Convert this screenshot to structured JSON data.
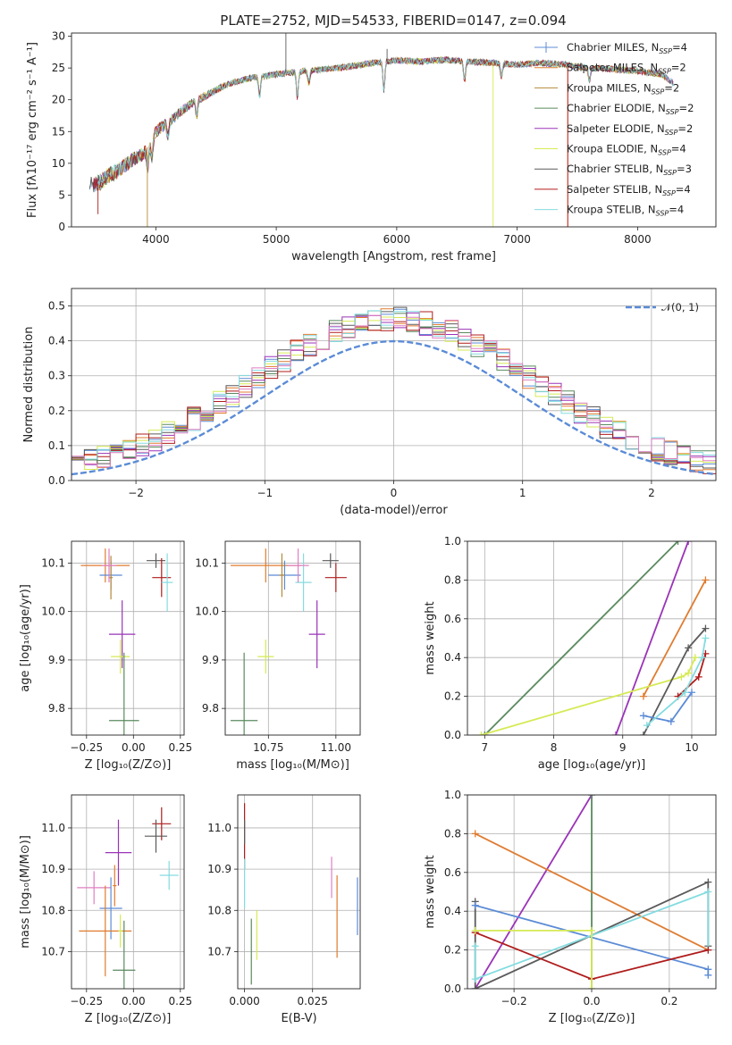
{
  "figure_title": "PLATE=2752, MJD=54533, FIBERID=0147, z=0.094",
  "colors": {
    "chabrier_miles": "#5b8bd6",
    "salpeter_miles": "#e07b2f",
    "kroupa_miles": "#b58a3a",
    "chabrier_elodie": "#5a8a5e",
    "salpeter_elodie": "#9a33b8",
    "kroupa_elodie": "#d6ea55",
    "chabrier_stelib": "#5a5a5a",
    "salpeter_stelib": "#b01c1c",
    "kroupa_stelib": "#84dce0",
    "pink": "#e07fc2",
    "normal": "#5b8bd6"
  },
  "chart_data": [
    {
      "id": "spectrum",
      "type": "line",
      "xlabel": "wavelength [Angstrom, rest frame]",
      "ylabel": "Flux [fλ10⁻¹⁷ erg cm⁻² s⁻¹ A⁻¹]",
      "xlim": [
        3300,
        8650
      ],
      "ylim": [
        0,
        30.5
      ],
      "xticks": [
        4000,
        5000,
        6000,
        7000,
        8000
      ],
      "yticks": [
        0,
        5,
        10,
        15,
        20,
        25,
        30
      ],
      "legend_position": "upper-right",
      "x_knots": [
        3500,
        3600,
        3700,
        3800,
        3900,
        4000,
        4100,
        4200,
        4300,
        4400,
        4500,
        4600,
        4800,
        5000,
        5200,
        5400,
        5600,
        5800,
        6000,
        6200,
        6400,
        6600,
        6800,
        7000,
        7200,
        7400,
        7600,
        7800,
        8000,
        8200,
        8300
      ],
      "y_knots": [
        6.5,
        8.0,
        9.0,
        10.5,
        11.5,
        15.0,
        16.5,
        18.0,
        19.5,
        20.5,
        21.5,
        22.5,
        23.5,
        24.0,
        24.5,
        24.8,
        25.2,
        25.8,
        26.2,
        26.0,
        26.3,
        26.0,
        25.8,
        25.5,
        25.8,
        25.5,
        25.0,
        24.8,
        24.5,
        24.0,
        22.5
      ],
      "series": [
        {
          "label": "Chabrier MILES, N",
          "sub": "SSP",
          "eq": "=4",
          "color_key": "chabrier_miles",
          "marker": true
        },
        {
          "label": "Salpeter MILES, N",
          "sub": "SSP",
          "eq": "=2",
          "color_key": "salpeter_miles"
        },
        {
          "label": "Kroupa MILES, N",
          "sub": "SSP",
          "eq": "=2",
          "color_key": "kroupa_miles"
        },
        {
          "label": "Chabrier ELODIE, N",
          "sub": "SSP",
          "eq": "=2",
          "color_key": "chabrier_elodie"
        },
        {
          "label": "Salpeter ELODIE, N",
          "sub": "SSP",
          "eq": "=2",
          "color_key": "salpeter_elodie"
        },
        {
          "label": "Kroupa ELODIE, N",
          "sub": "SSP",
          "eq": "=4",
          "color_key": "kroupa_elodie"
        },
        {
          "label": "Chabrier STELIB, N",
          "sub": "SSP",
          "eq": "=3",
          "color_key": "chabrier_stelib"
        },
        {
          "label": "Salpeter STELIB, N",
          "sub": "SSP",
          "eq": "=4",
          "color_key": "salpeter_stelib"
        },
        {
          "label": "Kroupa STELIB, N",
          "sub": "SSP",
          "eq": "=4",
          "color_key": "kroupa_stelib"
        }
      ]
    },
    {
      "id": "residuals",
      "type": "histogram",
      "xlabel": "(data-model)/error",
      "ylabel": "Normed distribution",
      "xlim": [
        -2.5,
        2.5
      ],
      "ylim": [
        0,
        0.55
      ],
      "xticks": [
        -2,
        -1,
        0,
        1,
        2
      ],
      "yticks": [
        0.0,
        0.1,
        0.2,
        0.3,
        0.4,
        0.5
      ],
      "grid": true,
      "legend_position": "upper-right",
      "normal_label": "𝒩(0, 1)",
      "bin_width": 0.1,
      "series_colors": [
        "chabrier_miles",
        "salpeter_miles",
        "chabrier_elodie",
        "salpeter_elodie",
        "kroupa_elodie",
        "chabrier_stelib",
        "salpeter_stelib",
        "kroupa_stelib",
        "pink"
      ]
    },
    {
      "id": "age_vs_Z",
      "type": "errorbar",
      "xlabel": "Z [log₁₀(Z/Z⊙)]",
      "ylabel": "age  [log₁₀(age/yr)]",
      "xlim": [
        -0.33,
        0.27
      ],
      "ylim": [
        9.745,
        10.145
      ],
      "xticks": [
        -0.25,
        0.0,
        0.25
      ],
      "xtick_labels": [
        "−0.25",
        "0.00",
        "0.25"
      ],
      "yticks": [
        9.8,
        9.9,
        10.0,
        10.1
      ],
      "ytick_labels": [
        "9.8",
        "9.9",
        "10.0",
        "10.1"
      ],
      "grid": true,
      "points": [
        {
          "x": -0.15,
          "y": 10.095,
          "xerr": 0.13,
          "yerr": 0.035,
          "c": "salpeter_miles"
        },
        {
          "x": -0.12,
          "y": 10.075,
          "xerr": 0.06,
          "yerr": 0.03,
          "c": "chabrier_miles"
        },
        {
          "x": -0.12,
          "y": 10.07,
          "xerr": 0.01,
          "yerr": 0.045,
          "c": "kroupa_miles"
        },
        {
          "x": 0.12,
          "y": 10.105,
          "xerr": 0.05,
          "yerr": 0.015,
          "c": "chabrier_stelib"
        },
        {
          "x": 0.15,
          "y": 10.07,
          "xerr": 0.05,
          "yerr": 0.04,
          "c": "salpeter_stelib"
        },
        {
          "x": 0.18,
          "y": 10.06,
          "xerr": 0.03,
          "yerr": 0.06,
          "c": "kroupa_stelib"
        },
        {
          "x": -0.13,
          "y": 10.095,
          "xerr": 0.04,
          "yerr": 0.035,
          "c": "pink"
        },
        {
          "x": -0.06,
          "y": 9.953,
          "xerr": 0.07,
          "yerr": 0.07,
          "c": "salpeter_elodie"
        },
        {
          "x": -0.07,
          "y": 9.907,
          "xerr": 0.05,
          "yerr": 0.035,
          "c": "kroupa_elodie"
        },
        {
          "x": -0.05,
          "y": 9.775,
          "xerr": 0.08,
          "yerr": 0.14,
          "c": "chabrier_elodie"
        }
      ]
    },
    {
      "id": "age_vs_mass",
      "type": "errorbar",
      "xlabel": "mass [log₁₀(M/M⊙)]",
      "ylabel": "",
      "xlim": [
        10.59,
        11.09
      ],
      "ylim": [
        9.745,
        10.145
      ],
      "xticks": [
        10.75,
        11.0
      ],
      "xtick_labels": [
        "10.75",
        "11.00"
      ],
      "yticks": [
        9.8,
        9.9,
        10.0,
        10.1
      ],
      "ytick_labels": [
        "9.8",
        "9.9",
        "10.0",
        "10.1"
      ],
      "grid": true,
      "points": [
        {
          "x": 10.74,
          "y": 10.095,
          "xerr": 0.13,
          "yerr": 0.035,
          "c": "salpeter_miles"
        },
        {
          "x": 10.81,
          "y": 10.075,
          "xerr": 0.06,
          "yerr": 0.03,
          "c": "chabrier_miles"
        },
        {
          "x": 10.8,
          "y": 10.075,
          "xerr": 0.01,
          "yerr": 0.045,
          "c": "kroupa_miles"
        },
        {
          "x": 10.98,
          "y": 10.105,
          "xerr": 0.03,
          "yerr": 0.015,
          "c": "chabrier_stelib"
        },
        {
          "x": 11.0,
          "y": 10.07,
          "xerr": 0.04,
          "yerr": 0.03,
          "c": "salpeter_stelib"
        },
        {
          "x": 10.88,
          "y": 10.06,
          "xerr": 0.03,
          "yerr": 0.06,
          "c": "kroupa_stelib"
        },
        {
          "x": 10.86,
          "y": 10.095,
          "xerr": 0.04,
          "yerr": 0.035,
          "c": "pink"
        },
        {
          "x": 10.93,
          "y": 9.953,
          "xerr": 0.03,
          "yerr": 0.07,
          "c": "salpeter_elodie"
        },
        {
          "x": 10.74,
          "y": 9.907,
          "xerr": 0.03,
          "yerr": 0.035,
          "c": "kroupa_elodie"
        },
        {
          "x": 10.66,
          "y": 9.775,
          "xerr": 0.05,
          "yerr": 0.14,
          "c": "chabrier_elodie"
        }
      ]
    },
    {
      "id": "mass_weight_vs_age",
      "type": "line",
      "xlabel": "age  [log₁₀(age/yr)]",
      "ylabel": "mass weight",
      "xlim": [
        6.75,
        10.35
      ],
      "ylim": [
        0,
        1
      ],
      "xticks": [
        7,
        8,
        9,
        10
      ],
      "xtick_labels": [
        "7",
        "8",
        "9",
        "10"
      ],
      "yticks": [
        0.0,
        0.2,
        0.4,
        0.6,
        0.8,
        1.0
      ],
      "ytick_labels": [
        "0.0",
        "0.2",
        "0.4",
        "0.6",
        "0.8",
        "1.0"
      ],
      "grid": true,
      "series": [
        {
          "c": "chabrier_elodie",
          "x": [
            7.0,
            9.8
          ],
          "y": [
            0.0,
            1.0
          ]
        },
        {
          "c": "salpeter_elodie",
          "x": [
            8.9,
            9.95
          ],
          "y": [
            0.0,
            1.0
          ]
        },
        {
          "c": "salpeter_miles",
          "x": [
            9.3,
            10.2
          ],
          "y": [
            0.2,
            0.8
          ]
        },
        {
          "c": "kroupa_elodie",
          "x": [
            6.95,
            9.85,
            9.95,
            10.05
          ],
          "y": [
            0.0,
            0.3,
            0.32,
            0.4
          ]
        },
        {
          "c": "chabrier_stelib",
          "x": [
            9.3,
            9.95,
            10.2
          ],
          "y": [
            0.0,
            0.45,
            0.55
          ]
        },
        {
          "c": "salpeter_stelib",
          "x": [
            9.8,
            10.1,
            10.2
          ],
          "y": [
            0.2,
            0.3,
            0.42
          ]
        },
        {
          "c": "chabrier_miles",
          "x": [
            9.3,
            9.7,
            10.0
          ],
          "y": [
            0.1,
            0.07,
            0.22
          ]
        },
        {
          "c": "kroupa_stelib",
          "x": [
            9.35,
            9.9,
            10.15,
            10.2
          ],
          "y": [
            0.05,
            0.22,
            0.4,
            0.5
          ]
        }
      ]
    },
    {
      "id": "mass_vs_Z",
      "type": "errorbar",
      "xlabel": "Z [log₁₀(Z/Z⊙)]",
      "ylabel": "mass [log₁₀(M/M⊙)]",
      "xlim": [
        -0.33,
        0.27
      ],
      "ylim": [
        10.61,
        11.08
      ],
      "xticks": [
        -0.25,
        0.0,
        0.25
      ],
      "xtick_labels": [
        "−0.25",
        "0.00",
        "0.25"
      ],
      "yticks": [
        10.7,
        10.8,
        10.9,
        11.0
      ],
      "ytick_labels": [
        "10.7",
        "10.8",
        "10.9",
        "11.0"
      ],
      "grid": true,
      "points": [
        {
          "x": 0.15,
          "y": 11.01,
          "xerr": 0.05,
          "yerr": 0.04,
          "c": "salpeter_stelib"
        },
        {
          "x": 0.12,
          "y": 10.98,
          "xerr": 0.06,
          "yerr": 0.04,
          "c": "chabrier_stelib"
        },
        {
          "x": -0.08,
          "y": 10.94,
          "xerr": 0.07,
          "yerr": 0.08,
          "c": "salpeter_elodie"
        },
        {
          "x": 0.19,
          "y": 10.885,
          "xerr": 0.05,
          "yerr": 0.035,
          "c": "kroupa_stelib"
        },
        {
          "x": -0.21,
          "y": 10.855,
          "xerr": 0.09,
          "yerr": 0.04,
          "c": "pink"
        },
        {
          "x": -0.1,
          "y": 10.86,
          "xerr": 0.01,
          "yerr": 0.05,
          "c": "salpeter_miles"
        },
        {
          "x": -0.12,
          "y": 10.805,
          "xerr": 0.06,
          "yerr": 0.075,
          "c": "chabrier_miles"
        },
        {
          "x": -0.15,
          "y": 10.75,
          "xerr": 0.14,
          "yerr": 0.11,
          "c": "salpeter_miles"
        },
        {
          "x": -0.07,
          "y": 10.75,
          "xerr": 0.01,
          "yerr": 0.04,
          "c": "kroupa_elodie"
        },
        {
          "x": -0.05,
          "y": 10.655,
          "xerr": 0.06,
          "yerr": 0.12,
          "c": "chabrier_elodie"
        }
      ]
    },
    {
      "id": "mass_vs_ebv",
      "type": "errorbar",
      "xlabel": "E(B-V)",
      "ylabel": "",
      "xlim": [
        -0.0025,
        0.0425
      ],
      "ylim": [
        10.61,
        11.08
      ],
      "xticks": [
        0.0,
        0.025
      ],
      "xtick_labels": [
        "0.000",
        "0.025"
      ],
      "yticks": [
        10.7,
        10.8,
        10.9,
        11.0
      ],
      "ytick_labels": [
        "10.7",
        "10.8",
        "10.9",
        "11.0"
      ],
      "grid": true,
      "points": [
        {
          "x": 0.0,
          "y": 10.98,
          "xerr": 0.0,
          "yerr": 0.08,
          "c": "salpeter_stelib"
        },
        {
          "x": 0.0,
          "y": 10.865,
          "xerr": 0.0,
          "yerr": 0.06,
          "c": "kroupa_stelib"
        },
        {
          "x": 0.0,
          "y": 10.99,
          "xerr": 0.0,
          "yerr": 0.03,
          "c": "chabrier_stelib"
        },
        {
          "x": 0.0045,
          "y": 10.74,
          "xerr": 0.0,
          "yerr": 0.06,
          "c": "kroupa_elodie"
        },
        {
          "x": 0.0025,
          "y": 10.7,
          "xerr": 0.0,
          "yerr": 0.08,
          "c": "chabrier_elodie"
        },
        {
          "x": 0.032,
          "y": 10.88,
          "xerr": 0.0,
          "yerr": 0.05,
          "c": "pink"
        },
        {
          "x": 0.034,
          "y": 10.785,
          "xerr": 0.0,
          "yerr": 0.1,
          "c": "salpeter_miles"
        },
        {
          "x": 0.0415,
          "y": 10.81,
          "xerr": 0.0,
          "yerr": 0.07,
          "c": "chabrier_miles"
        }
      ]
    },
    {
      "id": "mass_weight_vs_Z",
      "type": "line",
      "xlabel": "Z [log₁₀(Z/Z⊙)]",
      "ylabel": "mass weight",
      "xlim": [
        -0.32,
        0.32
      ],
      "ylim": [
        0,
        1
      ],
      "xticks": [
        -0.2,
        0.0,
        0.2
      ],
      "xtick_labels": [
        "−0.2",
        "0.0",
        "0.2"
      ],
      "yticks": [
        0.0,
        0.2,
        0.4,
        0.6,
        0.8,
        1.0
      ],
      "ytick_labels": [
        "0.0",
        "0.2",
        "0.4",
        "0.6",
        "0.8",
        "1.0"
      ],
      "grid": true,
      "series": [
        {
          "c": "salpeter_elodie",
          "x": [
            -0.3,
            0.0
          ],
          "y": [
            0.0,
            1.0
          ]
        },
        {
          "c": "chabrier_elodie",
          "x": [
            0.0,
            0.0
          ],
          "y": [
            0.0,
            1.0
          ]
        },
        {
          "c": "salpeter_miles",
          "x": [
            -0.3,
            0.3
          ],
          "y": [
            0.8,
            0.2
          ]
        },
        {
          "c": "chabrier_stelib",
          "x": [
            -0.3,
            -0.3,
            0.3,
            0.3
          ],
          "y": [
            0.45,
            0.0,
            0.55,
            0.22
          ]
        },
        {
          "c": "chabrier_miles",
          "x": [
            -0.3,
            0.3,
            0.3
          ],
          "y": [
            0.43,
            0.1,
            0.07
          ]
        },
        {
          "c": "kroupa_stelib",
          "x": [
            -0.3,
            -0.3,
            0.3,
            0.3
          ],
          "y": [
            0.22,
            0.05,
            0.5,
            0.2
          ]
        },
        {
          "c": "salpeter_stelib",
          "x": [
            -0.3,
            0.0,
            0.3
          ],
          "y": [
            0.29,
            0.05,
            0.2
          ]
        },
        {
          "c": "kroupa_elodie",
          "x": [
            -0.3,
            0.0,
            0.0
          ],
          "y": [
            0.3,
            0.3,
            0.0
          ]
        }
      ]
    }
  ]
}
